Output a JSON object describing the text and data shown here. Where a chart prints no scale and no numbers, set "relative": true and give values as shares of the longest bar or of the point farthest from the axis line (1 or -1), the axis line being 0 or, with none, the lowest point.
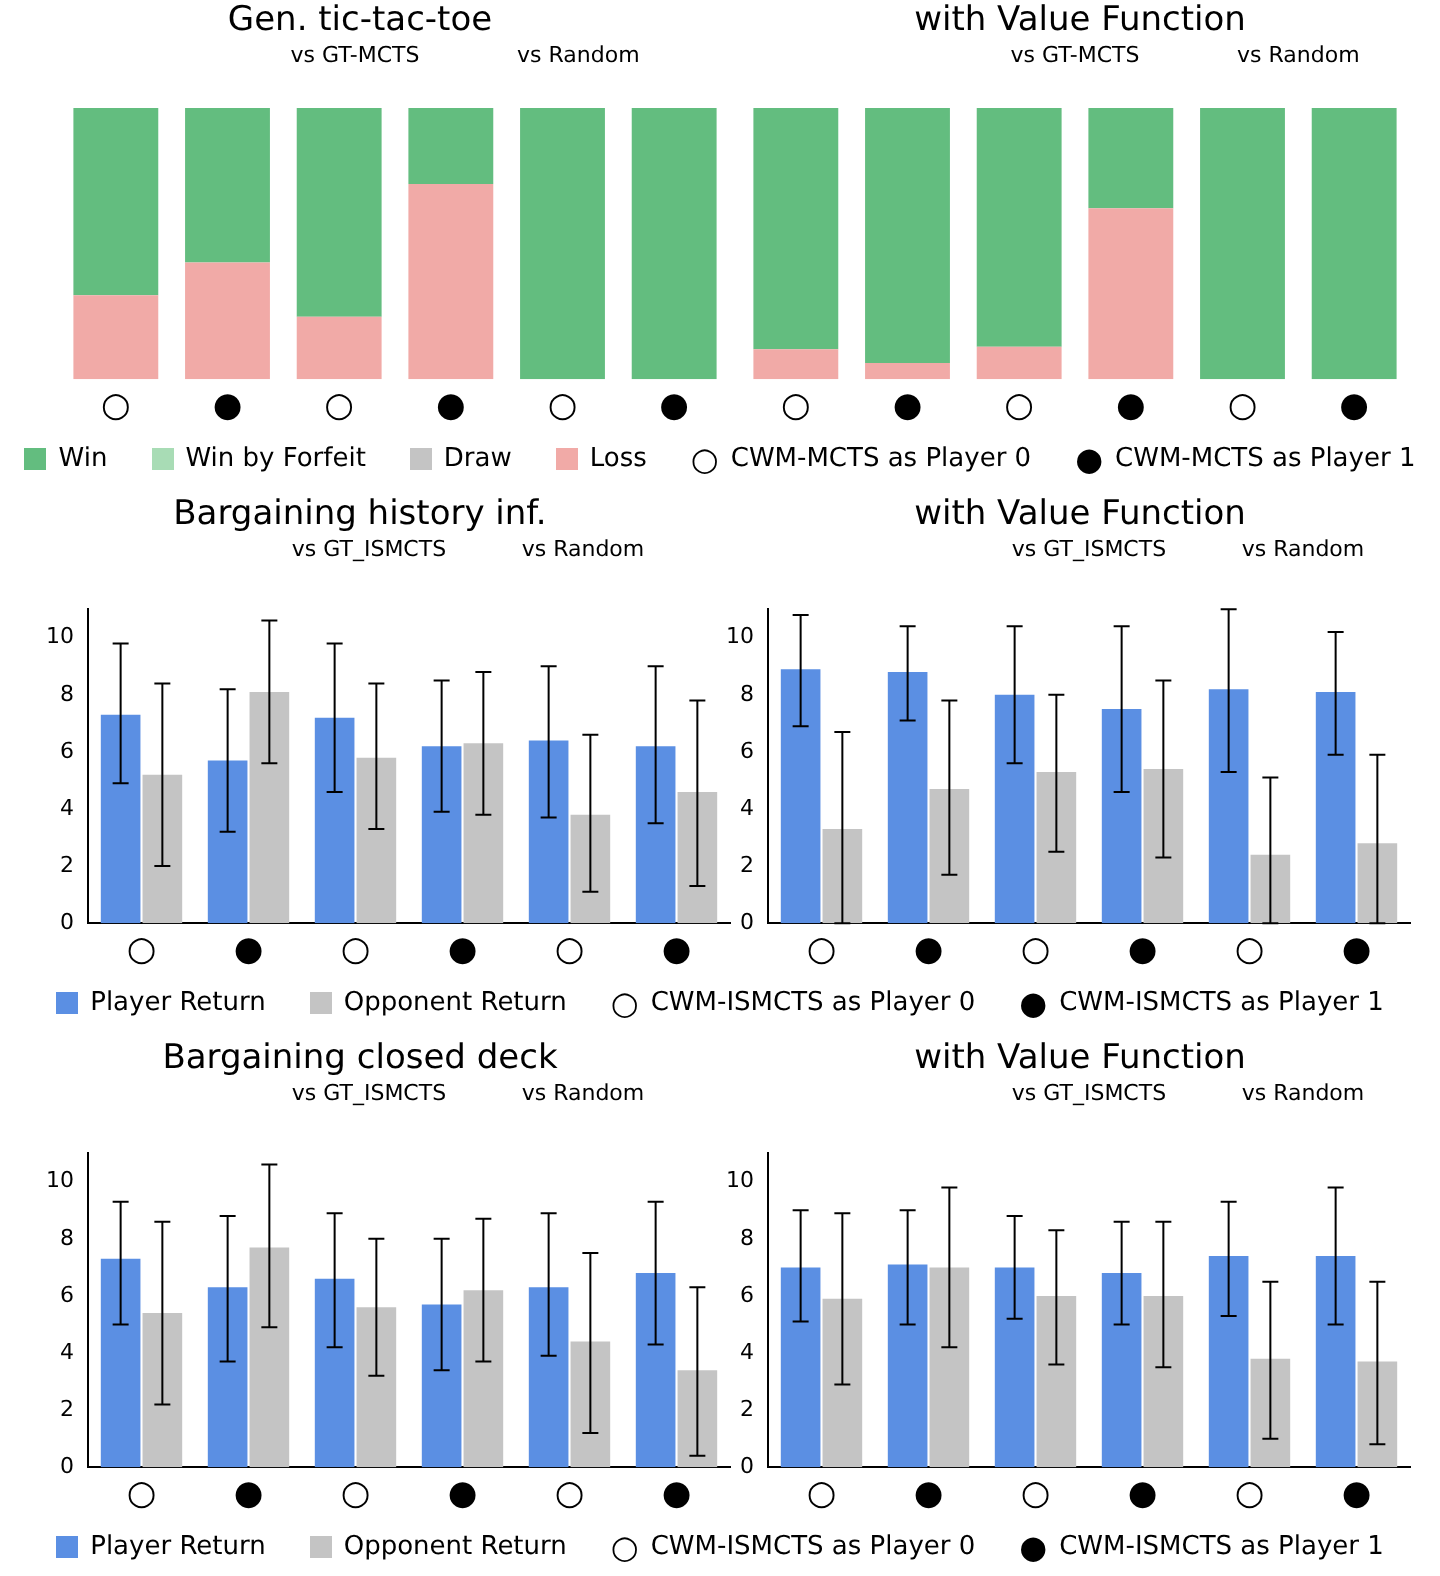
{
  "chart_data": [
    {
      "type": "bar",
      "title": "Gen. tic-tac-toe",
      "categories": [
        "○",
        "●",
        "○",
        "●",
        "○",
        "●"
      ],
      "stacked": true,
      "relative": true,
      "legend": "bottom",
      "series": [
        {
          "name": "Loss",
          "color": "#f1aaa7",
          "values": [
            0.31,
            0.43,
            0.23,
            0.72,
            0,
            0
          ]
        },
        {
          "name": "Draw",
          "color": "#c4c4c4",
          "values": [
            0,
            0,
            0,
            0,
            0,
            0
          ]
        },
        {
          "name": "Win by Forfeit",
          "color": "#a8dcb5",
          "values": [
            0,
            0,
            0,
            0,
            0,
            0
          ]
        },
        {
          "name": "Win",
          "color": "#63bd7f",
          "values": [
            0.69,
            0.57,
            0.77,
            0.28,
            1,
            1
          ]
        }
      ],
      "annotations": [
        "vs GT-MCTS",
        "vs Random",
        "CWM-MCTS as Player 0",
        "CWM-MCTS as Player 1"
      ]
    },
    {
      "type": "bar",
      "title": "with Value Function",
      "categories": [
        "○",
        "●",
        "○",
        "●",
        "○",
        "●"
      ],
      "stacked": true,
      "relative": true,
      "series": [
        {
          "color": "#f1aaa7",
          "values": [
            0.11,
            0.06,
            0.12,
            0.63,
            0,
            0
          ]
        },
        {
          "color": "#c4c4c4",
          "values": [
            0,
            0,
            0,
            0,
            0,
            0
          ]
        },
        {
          "color": "#a8dcb5",
          "values": [
            0,
            0,
            0,
            0,
            0,
            0
          ]
        },
        {
          "color": "#63bd7f",
          "values": [
            0.89,
            0.94,
            0.88,
            0.37,
            1,
            1
          ]
        }
      ],
      "annotations": [
        "vs GT-MCTS",
        "vs Random"
      ]
    },
    {
      "type": "bar",
      "title": "Bargaining history inf.",
      "categories": [
        "○",
        "●",
        "○",
        "●",
        "○",
        "●"
      ],
      "ylim": [
        0,
        11
      ],
      "yticks": [
        0,
        2,
        4,
        6,
        8,
        10
      ],
      "grid": false,
      "legend": "bottom",
      "series": [
        {
          "name": "Player Return",
          "color": "#5b8fe3",
          "values": [
            7.3,
            5.7,
            7.2,
            6.2,
            6.4,
            6.2
          ],
          "errors": [
            [
              4.9,
              9.8
            ],
            [
              3.2,
              8.2
            ],
            [
              4.6,
              9.8
            ],
            [
              3.9,
              8.5
            ],
            [
              3.7,
              9.0
            ],
            [
              3.5,
              9.0
            ]
          ]
        },
        {
          "name": "Opponent Return",
          "color": "#c4c4c4",
          "values": [
            5.2,
            8.1,
            5.8,
            6.3,
            3.8,
            4.6
          ],
          "errors": [
            [
              2.0,
              8.4
            ],
            [
              5.6,
              10.6
            ],
            [
              3.3,
              8.4
            ],
            [
              3.8,
              8.8
            ],
            [
              1.1,
              6.6
            ],
            [
              1.3,
              7.8
            ]
          ]
        }
      ],
      "annotations": [
        "vs GT_ISMCTS",
        "vs Random",
        "CWM-ISMCTS as Player 0",
        "CWM-ISMCTS as Player 1"
      ]
    },
    {
      "type": "bar",
      "title": "with Value Function",
      "categories": [
        "○",
        "●",
        "○",
        "●",
        "○",
        "●"
      ],
      "ylim": [
        0,
        11
      ],
      "yticks": [
        0,
        2,
        4,
        6,
        8,
        10
      ],
      "grid": false,
      "series": [
        {
          "color": "#5b8fe3",
          "values": [
            8.9,
            8.8,
            8.0,
            7.5,
            8.2,
            8.1
          ],
          "errors": [
            [
              6.9,
              10.8
            ],
            [
              7.1,
              10.4
            ],
            [
              5.6,
              10.4
            ],
            [
              4.6,
              10.4
            ],
            [
              5.3,
              11.0
            ],
            [
              5.9,
              10.2
            ]
          ]
        },
        {
          "color": "#c4c4c4",
          "values": [
            3.3,
            4.7,
            5.3,
            5.4,
            2.4,
            2.8
          ],
          "errors": [
            [
              0,
              6.7
            ],
            [
              1.7,
              7.8
            ],
            [
              2.5,
              8.0
            ],
            [
              2.3,
              8.5
            ],
            [
              0,
              5.1
            ],
            [
              0,
              5.9
            ]
          ]
        }
      ],
      "annotations": [
        "vs GT_ISMCTS",
        "vs Random"
      ]
    },
    {
      "type": "bar",
      "title": "Bargaining closed deck",
      "categories": [
        "○",
        "●",
        "○",
        "●",
        "○",
        "●"
      ],
      "ylim": [
        0,
        11
      ],
      "yticks": [
        0,
        2,
        4,
        6,
        8,
        10
      ],
      "grid": false,
      "legend": "bottom",
      "series": [
        {
          "name": "Player Return",
          "color": "#5b8fe3",
          "values": [
            7.3,
            6.3,
            6.6,
            5.7,
            6.3,
            6.8
          ],
          "errors": [
            [
              5.0,
              9.3
            ],
            [
              3.7,
              8.8
            ],
            [
              4.2,
              8.9
            ],
            [
              3.4,
              8.0
            ],
            [
              3.9,
              8.9
            ],
            [
              4.3,
              9.3
            ]
          ]
        },
        {
          "name": "Opponent Return",
          "color": "#c4c4c4",
          "values": [
            5.4,
            7.7,
            5.6,
            6.2,
            4.4,
            3.4
          ],
          "errors": [
            [
              2.2,
              8.6
            ],
            [
              4.9,
              10.6
            ],
            [
              3.2,
              8.0
            ],
            [
              3.7,
              8.7
            ],
            [
              1.2,
              7.5
            ],
            [
              0.4,
              6.3
            ]
          ]
        }
      ],
      "annotations": [
        "vs GT_ISMCTS",
        "vs Random",
        "CWM-ISMCTS as Player 0",
        "CWM-ISMCTS as Player 1"
      ]
    },
    {
      "type": "bar",
      "title": "with Value Function",
      "categories": [
        "○",
        "●",
        "○",
        "●",
        "○",
        "●"
      ],
      "ylim": [
        0,
        11
      ],
      "yticks": [
        0,
        2,
        4,
        6,
        8,
        10
      ],
      "grid": false,
      "series": [
        {
          "color": "#5b8fe3",
          "values": [
            7.0,
            7.1,
            7.0,
            6.8,
            7.4,
            7.4
          ],
          "errors": [
            [
              5.1,
              9.0
            ],
            [
              5.0,
              9.0
            ],
            [
              5.2,
              8.8
            ],
            [
              5.0,
              8.6
            ],
            [
              5.3,
              9.3
            ],
            [
              5.0,
              9.8
            ]
          ]
        },
        {
          "color": "#c4c4c4",
          "values": [
            5.9,
            7.0,
            6.0,
            6.0,
            3.8,
            3.7
          ],
          "errors": [
            [
              2.9,
              8.9
            ],
            [
              4.2,
              9.8
            ],
            [
              3.6,
              8.3
            ],
            [
              3.5,
              8.6
            ],
            [
              1.0,
              6.5
            ],
            [
              0.8,
              6.5
            ]
          ]
        }
      ],
      "annotations": [
        "vs GT_ISMCTS",
        "vs Random"
      ]
    }
  ]
}
